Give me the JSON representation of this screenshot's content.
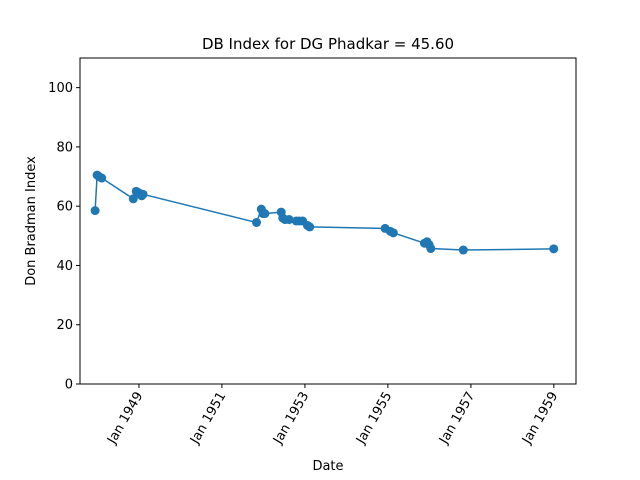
{
  "chart_data": {
    "type": "line",
    "title": "DB Index for DG Phadkar = 45.60",
    "xlabel": "Date",
    "ylabel": "Don Bradman Index",
    "ylim": [
      0,
      110
    ],
    "xlim": [
      "1947-08-01",
      "1959-07-15"
    ],
    "yticks": [
      0,
      20,
      40,
      60,
      80,
      100
    ],
    "xticks": [
      {
        "date": "1949-01-01",
        "label": "Jan 1949"
      },
      {
        "date": "1951-01-01",
        "label": "Jan 1951"
      },
      {
        "date": "1953-01-01",
        "label": "Jan 1953"
      },
      {
        "date": "1955-01-01",
        "label": "Jan 1955"
      },
      {
        "date": "1957-01-01",
        "label": "Jan 1957"
      },
      {
        "date": "1959-01-01",
        "label": "Jan 1959"
      }
    ],
    "grid": false,
    "color": "#1f77b4",
    "series": [
      {
        "marker": "circle",
        "points": [
          {
            "x": "1947-12-12",
            "y": 58.5
          },
          {
            "x": "1947-12-30",
            "y": 70.5
          },
          {
            "x": "1948-01-15",
            "y": 70.0
          },
          {
            "x": "1948-02-08",
            "y": 69.5
          },
          {
            "x": "1948-11-12",
            "y": 62.5
          },
          {
            "x": "1948-12-08",
            "y": 65.0
          },
          {
            "x": "1948-12-31",
            "y": 64.5
          },
          {
            "x": "1949-01-25",
            "y": 63.5
          },
          {
            "x": "1949-02-06",
            "y": 64.0
          },
          {
            "x": "1951-11-02",
            "y": 54.5
          },
          {
            "x": "1951-12-14",
            "y": 59.0
          },
          {
            "x": "1951-12-30",
            "y": 57.5
          },
          {
            "x": "1952-01-14",
            "y": 57.5
          },
          {
            "x": "1952-06-06",
            "y": 58.0
          },
          {
            "x": "1952-06-20",
            "y": 56.0
          },
          {
            "x": "1952-07-10",
            "y": 55.5
          },
          {
            "x": "1952-08-15",
            "y": 55.5
          },
          {
            "x": "1952-10-16",
            "y": 55.0
          },
          {
            "x": "1952-11-12",
            "y": 55.0
          },
          {
            "x": "1952-12-12",
            "y": 55.0
          },
          {
            "x": "1953-01-23",
            "y": 53.5
          },
          {
            "x": "1953-02-12",
            "y": 53.0
          },
          {
            "x": "1954-12-08",
            "y": 52.5
          },
          {
            "x": "1955-01-23",
            "y": 51.5
          },
          {
            "x": "1955-02-18",
            "y": 51.0
          },
          {
            "x": "1955-11-19",
            "y": 47.5
          },
          {
            "x": "1955-12-12",
            "y": 48.0
          },
          {
            "x": "1955-12-30",
            "y": 47.0
          },
          {
            "x": "1956-01-14",
            "y": 45.7
          },
          {
            "x": "1956-10-26",
            "y": 45.2
          },
          {
            "x": "1958-12-31",
            "y": 45.6
          }
        ]
      }
    ]
  }
}
